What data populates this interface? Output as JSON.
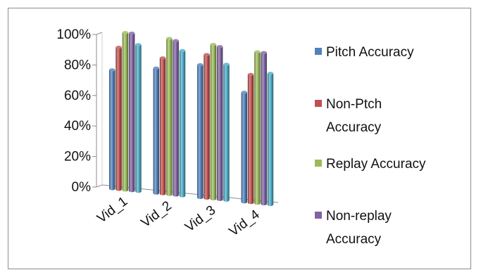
{
  "chart_data": {
    "type": "bar",
    "style": "3d-clustered-cylinder",
    "categories": [
      "Vid_1",
      "Vid_2",
      "Vid_3",
      "Vid_4"
    ],
    "series": [
      {
        "name": "Pitch Accuracy",
        "legend_lines": [
          "Pitch Accuracy"
        ],
        "color": "#4F81BD",
        "values": [
          75,
          79,
          84,
          69
        ]
      },
      {
        "name": "Non-Ptch Accuracy",
        "legend_lines": [
          "Non-Ptch",
          "Accuracy"
        ],
        "color": "#C0504D",
        "values": [
          90,
          86,
          91,
          81
        ]
      },
      {
        "name": "Replay Accuracy",
        "legend_lines": [
          "Replay Accuracy"
        ],
        "color": "#9BBB59",
        "values": [
          100,
          99,
          98,
          96
        ]
      },
      {
        "name": "Non-replay Accuracy",
        "legend_lines": [
          "Non-replay",
          "Accuracy"
        ],
        "color": "#8064A2",
        "values": [
          100,
          98,
          97,
          96
        ]
      },
      {
        "name": "",
        "legend_lines": [],
        "color": "#4BACC6",
        "values": [
          93,
          92,
          86,
          83
        ]
      }
    ],
    "yticks": [
      "0%",
      "20%",
      "40%",
      "60%",
      "80%",
      "100%"
    ],
    "ylim": [
      0,
      100
    ],
    "legend_position": "right",
    "grid": false
  }
}
